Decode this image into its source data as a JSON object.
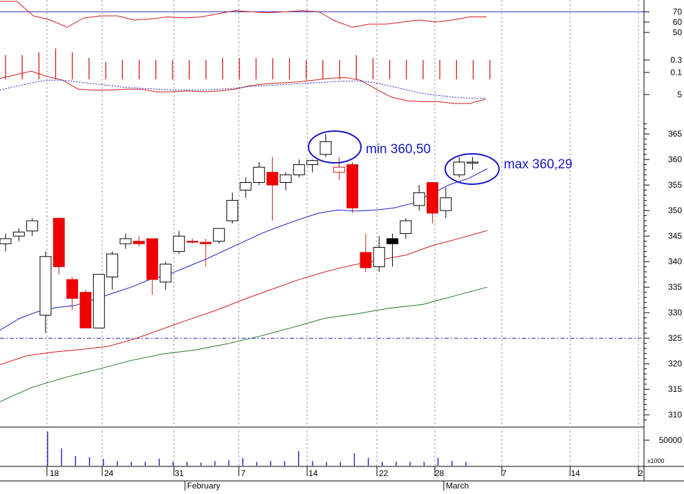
{
  "chart_data": [
    {
      "type": "line",
      "name_panel": "rsi",
      "y_ticks": [
        70,
        60,
        50
      ],
      "ylim": [
        40,
        80
      ],
      "threshold": 70,
      "series": [
        {
          "values": [
            80,
            80,
            66,
            62,
            55,
            64,
            66,
            66,
            62,
            63,
            65,
            64,
            65,
            68,
            71,
            70,
            69,
            70,
            71,
            70,
            61,
            55,
            58,
            58,
            60,
            62,
            60,
            62,
            65,
            65
          ]
        }
      ]
    },
    {
      "type": "bar",
      "name_panel": "oscillator",
      "y_ticks": [
        "0.3",
        "0.1"
      ],
      "values": [
        0.25,
        0.25,
        0.28,
        0.32,
        0.28,
        0.22,
        0.18,
        0.2,
        0.2,
        0.2,
        0.2,
        0.2,
        0.2,
        0.22,
        0.22,
        0.22,
        0.22,
        0.22,
        0.2,
        0.2,
        0.2,
        0.25,
        0.22,
        0.2,
        0.2,
        0.2,
        0.2,
        0.2,
        0.2,
        0.2
      ]
    },
    {
      "type": "line",
      "name_panel": "indicator",
      "y_ticks": [
        "5"
      ],
      "series": [
        {
          "style": "solid",
          "values": [
            6.8,
            7.2,
            7.6,
            7.0,
            6.6,
            5.6,
            5.5,
            5.5,
            5.6,
            5.6,
            5.3,
            5.3,
            5.4,
            5.3,
            5.4,
            5.6,
            6.0,
            6.2,
            6.3,
            6.4,
            6.6,
            6.8,
            6.9,
            6.6,
            5.6,
            4.7,
            4.3,
            4.2,
            4.2,
            4.0,
            4.0,
            4.5
          ]
        },
        {
          "style": "dashed",
          "values": [
            5.5,
            5.9,
            6.3,
            6.6,
            6.6,
            6.4,
            6.2,
            6.0,
            5.8,
            5.7,
            5.6,
            5.5,
            5.5,
            5.5,
            5.6,
            5.7,
            5.9,
            6.0,
            6.1,
            6.2,
            6.3,
            6.4,
            6.5,
            6.5,
            6.3,
            5.9,
            5.5,
            5.1,
            4.9,
            4.7,
            4.6,
            4.6
          ]
        }
      ]
    },
    {
      "type": "candlestick",
      "name_panel": "price",
      "y_ticks": [
        365,
        360,
        355,
        350,
        345,
        340,
        335,
        330,
        325,
        320,
        315,
        310
      ],
      "ylim": [
        308,
        368
      ],
      "reference_line": 325,
      "candles": [
        {
          "o": 343.5,
          "h": 345.5,
          "l": 342.0,
          "c": 344.5,
          "color": "white"
        },
        {
          "o": 345.0,
          "h": 346.5,
          "l": 344.0,
          "c": 345.8,
          "color": "white"
        },
        {
          "o": 346.0,
          "h": 348.5,
          "l": 345.0,
          "c": 348.0,
          "color": "white"
        },
        {
          "o": 329.5,
          "h": 342.0,
          "l": 326.0,
          "c": 341.0,
          "color": "white"
        },
        {
          "o": 348.5,
          "h": 348.5,
          "l": 337.5,
          "c": 339.0,
          "color": "red"
        },
        {
          "o": 336.5,
          "h": 337.0,
          "l": 330.5,
          "c": 332.8,
          "color": "red"
        },
        {
          "o": 334.0,
          "h": 334.5,
          "l": 327.0,
          "c": 327.0,
          "color": "red"
        },
        {
          "o": 327.0,
          "h": 337.5,
          "l": 327.0,
          "c": 337.5,
          "color": "white"
        },
        {
          "o": 337.0,
          "h": 342.0,
          "l": 334.5,
          "c": 341.5,
          "color": "white"
        },
        {
          "o": 343.5,
          "h": 345.5,
          "l": 342.5,
          "c": 344.5,
          "color": "white"
        },
        {
          "o": 344.0,
          "h": 345.0,
          "l": 343.0,
          "c": 343.5,
          "color": "red"
        },
        {
          "o": 344.5,
          "h": 344.5,
          "l": 333.5,
          "c": 336.5,
          "color": "red"
        },
        {
          "o": 336.0,
          "h": 340.0,
          "l": 334.5,
          "c": 339.5,
          "color": "white"
        },
        {
          "o": 342.0,
          "h": 346.0,
          "l": 341.5,
          "c": 345.0,
          "color": "white"
        },
        {
          "o": 344.0,
          "h": 344.5,
          "l": 343.5,
          "c": 344.0,
          "color": "red"
        },
        {
          "o": 343.5,
          "h": 344.5,
          "l": 339.0,
          "c": 343.8,
          "color": "red"
        },
        {
          "o": 344.0,
          "h": 346.5,
          "l": 343.5,
          "c": 346.5,
          "color": "white"
        },
        {
          "o": 348.0,
          "h": 353.5,
          "l": 347.5,
          "c": 352.0,
          "color": "white"
        },
        {
          "o": 354.0,
          "h": 356.5,
          "l": 352.5,
          "c": 355.5,
          "color": "white"
        },
        {
          "o": 355.5,
          "h": 359.5,
          "l": 355.0,
          "c": 358.5,
          "color": "white"
        },
        {
          "o": 357.5,
          "h": 360.5,
          "l": 348.0,
          "c": 355.0,
          "color": "red"
        },
        {
          "o": 355.5,
          "h": 357.5,
          "l": 354.0,
          "c": 357.0,
          "color": "white"
        },
        {
          "o": 357.0,
          "h": 360.0,
          "l": 356.5,
          "c": 359.0,
          "color": "white"
        },
        {
          "o": 359.0,
          "h": 360.0,
          "l": 357.5,
          "c": 359.8,
          "color": "white"
        },
        {
          "o": 361.0,
          "h": 365.0,
          "l": 360.5,
          "c": 363.5,
          "color": "white"
        },
        {
          "o": 358.5,
          "h": 360.5,
          "l": 356.0,
          "c": 357.5,
          "color": "red",
          "hollow": true
        },
        {
          "o": 359.0,
          "h": 359.5,
          "l": 349.5,
          "c": 350.5,
          "color": "red"
        },
        {
          "o": 341.8,
          "h": 345.5,
          "l": 338.0,
          "c": 338.8,
          "color": "red"
        },
        {
          "o": 339.0,
          "h": 345.0,
          "l": 338.0,
          "c": 342.8,
          "color": "white"
        },
        {
          "o": 343.5,
          "h": 345.5,
          "l": 339.0,
          "c": 344.5,
          "color": "black"
        },
        {
          "o": 345.5,
          "h": 348.5,
          "l": 344.5,
          "c": 348.0,
          "color": "white"
        },
        {
          "o": 351.0,
          "h": 355.0,
          "l": 350.0,
          "c": 353.5,
          "color": "white"
        },
        {
          "o": 355.5,
          "h": 355.5,
          "l": 347.5,
          "c": 349.5,
          "color": "red"
        },
        {
          "o": 350.0,
          "h": 354.5,
          "l": 348.5,
          "c": 352.5,
          "color": "white"
        },
        {
          "o": 357.0,
          "h": 360.5,
          "l": 356.5,
          "c": 359.5,
          "color": "white"
        },
        {
          "o": 359.5,
          "h": 360.5,
          "l": 358.0,
          "c": 359.5,
          "color": "white"
        }
      ],
      "moving_averages": [
        {
          "color": "#1a1ac8",
          "values": [
            326.6,
            328.8,
            330.2,
            331.0,
            331.4,
            332.6,
            333.8,
            335.0,
            336.5,
            337.5,
            339.0,
            340.5,
            342.2,
            343.9,
            345.6,
            347.0,
            348.3,
            349.5,
            350.1,
            349.9,
            350.1,
            350.5,
            351.4,
            353.3,
            355.1,
            356.3,
            358.2
          ]
        },
        {
          "color": "#d01818",
          "values": [
            319.8,
            321.6,
            322.3,
            322.8,
            323.4,
            324.9,
            326.8,
            328.7,
            330.5,
            332.6,
            334.5,
            336.4,
            338.0,
            339.3,
            340.3,
            341.3,
            343.2,
            344.6,
            346.1
          ]
        },
        {
          "color": "#1c7a1c",
          "values": [
            312.6,
            315.4,
            317.3,
            318.9,
            320.6,
            321.9,
            322.7,
            323.9,
            325.4,
            327.1,
            328.9,
            329.8,
            330.9,
            331.6,
            333.3,
            335.0
          ]
        }
      ],
      "annotations": [
        "min 360,50",
        "max 360,29"
      ]
    },
    {
      "type": "bar",
      "name_panel": "volume",
      "y_ticks": [
        "50000"
      ],
      "unit_label": "x1000",
      "values": [
        0.88,
        0.45,
        0.25,
        0.22,
        0.18,
        0.12,
        0.1,
        0.1,
        0.18,
        0.1,
        0.1,
        0.08,
        0.12,
        0.14,
        0.2,
        0.1,
        0.12,
        0.12,
        0.38,
        0.12,
        0.1,
        0.1,
        0.32,
        0.2,
        0.1,
        0.1,
        0.1,
        0.1,
        0.2,
        0.12,
        0.1
      ]
    }
  ],
  "x_axis": {
    "day_ticks": [
      "18",
      "24",
      "31",
      "7",
      "14",
      "22",
      "28",
      "7",
      "14",
      "2"
    ],
    "month_labels": [
      "February",
      "March"
    ]
  }
}
